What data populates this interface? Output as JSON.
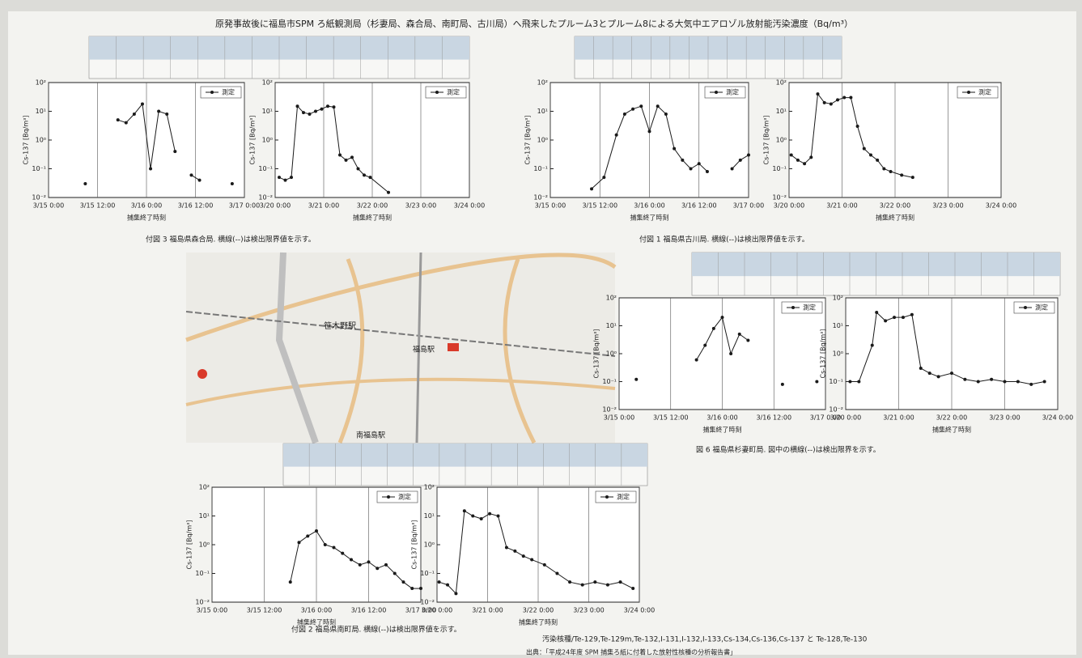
{
  "title": "原発事故後に福島市SPM ろ紙観測局（杉妻局、森合局、南町局、古川局）へ飛来したプルーム3とプルーム8による大気中エアロゾル放射能汚染濃度（Bq/m³）",
  "chart_data": [
    {
      "type": "line",
      "xlabel": "捕集終了時刻",
      "ylabel": "Cs-137 [Bq/m³]",
      "log_y": true,
      "grid": true,
      "markers": true,
      "xlim": [
        "3/15 0:00",
        "3/17 0:00"
      ],
      "xticks": [
        "3/15 0:00",
        "3/15 12:00",
        "3/16 0:00",
        "3/16 12:00",
        "3/17 0:00"
      ],
      "ylim": [
        0.01,
        100
      ],
      "yticks": [
        {
          "value": 0.01,
          "label": "10⁻²"
        },
        {
          "value": 0.1,
          "label": "10⁻¹"
        },
        {
          "value": 1,
          "label": "10⁰"
        },
        {
          "value": 10,
          "label": "10¹"
        },
        {
          "value": 100,
          "label": "10²"
        }
      ],
      "x": [
        "3/15 9:00",
        "3/15 15:00",
        "3/15 17:00",
        "3/15 19:00",
        "3/15 21:00",
        "3/15 23:00",
        "3/16 1:00",
        "3/16 3:00",
        "3/16 5:00",
        "3/16 7:00",
        "3/16 9:00",
        "3/16 11:00",
        "3/16 13:00",
        "3/16 15:00",
        "3/16 21:00"
      ],
      "series": [
        {
          "name": "測定",
          "color": "#1a1a1a",
          "values": [
            0.03,
            null,
            5,
            4,
            8,
            18,
            0.1,
            10,
            8,
            0.4,
            null,
            0.06,
            0.04,
            null,
            0.03
          ]
        }
      ]
    },
    {
      "type": "line",
      "xlabel": "捕集終了時刻",
      "ylabel": "Cs-137 [Bq/m³]",
      "log_y": true,
      "grid": true,
      "markers": true,
      "xlim": [
        "3/20 0:00",
        "3/24 0:00"
      ],
      "xticks": [
        "3/20 0:00",
        "3/21 0:00",
        "3/22 0:00",
        "3/23 0:00",
        "3/24 0:00"
      ],
      "ylim": [
        0.01,
        100
      ],
      "yticks": [
        {
          "value": 0.01,
          "label": "10⁻²"
        },
        {
          "value": 0.1,
          "label": "10⁻¹"
        },
        {
          "value": 1,
          "label": "10⁰"
        },
        {
          "value": 10,
          "label": "10¹"
        },
        {
          "value": 100,
          "label": "10²"
        }
      ],
      "x": [
        "3/20 2:00",
        "3/20 5:00",
        "3/20 8:00",
        "3/20 11:00",
        "3/20 14:00",
        "3/20 17:00",
        "3/20 20:00",
        "3/20 23:00",
        "3/21 2:00",
        "3/21 5:00",
        "3/21 8:00",
        "3/21 11:00",
        "3/21 14:00",
        "3/21 17:00",
        "3/21 20:00",
        "3/21 23:00",
        "3/22 8:00"
      ],
      "series": [
        {
          "name": "測定",
          "color": "#1a1a1a",
          "values": [
            0.05,
            0.04,
            0.05,
            15,
            9,
            8,
            10,
            12,
            15,
            14,
            0.3,
            0.2,
            0.25,
            0.1,
            0.06,
            0.05,
            0.015
          ]
        }
      ]
    },
    {
      "type": "line",
      "xlabel": "捕集終了時刻",
      "ylabel": "Cs-137 [Bq/m³]",
      "log_y": true,
      "grid": true,
      "markers": true,
      "xlim": [
        "3/15 0:00",
        "3/17 0:00"
      ],
      "xticks": [
        "3/15 0:00",
        "3/15 12:00",
        "3/16 0:00",
        "3/16 12:00",
        "3/17 0:00"
      ],
      "ylim": [
        0.01,
        100
      ],
      "yticks": [
        {
          "value": 0.01,
          "label": "10⁻²"
        },
        {
          "value": 0.1,
          "label": "10⁻¹"
        },
        {
          "value": 1,
          "label": "10⁰"
        },
        {
          "value": 10,
          "label": "10¹"
        },
        {
          "value": 100,
          "label": "10²"
        }
      ],
      "x": [
        "3/15 10:00",
        "3/15 13:00",
        "3/15 16:00",
        "3/15 18:00",
        "3/15 20:00",
        "3/15 22:00",
        "3/16 0:00",
        "3/16 2:00",
        "3/16 4:00",
        "3/16 6:00",
        "3/16 8:00",
        "3/16 10:00",
        "3/16 12:00",
        "3/16 14:00",
        "3/16 17:00",
        "3/16 20:00",
        "3/16 22:00",
        "3/17 0:00"
      ],
      "series": [
        {
          "name": "測定",
          "color": "#1a1a1a",
          "values": [
            0.02,
            0.05,
            1.5,
            8,
            12,
            15,
            2,
            15,
            8,
            0.5,
            0.2,
            0.1,
            0.15,
            0.08,
            null,
            0.1,
            0.2,
            0.3
          ]
        }
      ]
    },
    {
      "type": "line",
      "xlabel": "捕集終了時刻",
      "ylabel": "Cs-137 [Bq/m³]",
      "log_y": true,
      "grid": true,
      "markers": true,
      "xlim": [
        "3/20 0:00",
        "3/24 0:00"
      ],
      "xticks": [
        "3/20 0:00",
        "3/21 0:00",
        "3/22 0:00",
        "3/23 0:00",
        "3/24 0:00"
      ],
      "ylim": [
        0.01,
        100
      ],
      "yticks": [
        {
          "value": 0.01,
          "label": "10⁻²"
        },
        {
          "value": 0.1,
          "label": "10⁻¹"
        },
        {
          "value": 1,
          "label": "10⁰"
        },
        {
          "value": 10,
          "label": "10¹"
        },
        {
          "value": 100,
          "label": "10²"
        }
      ],
      "x": [
        "3/20 1:00",
        "3/20 4:00",
        "3/20 7:00",
        "3/20 10:00",
        "3/20 13:00",
        "3/20 16:00",
        "3/20 19:00",
        "3/20 22:00",
        "3/21 1:00",
        "3/21 4:00",
        "3/21 7:00",
        "3/21 10:00",
        "3/21 13:00",
        "3/21 16:00",
        "3/21 19:00",
        "3/21 22:00",
        "3/22 3:00",
        "3/22 8:00"
      ],
      "series": [
        {
          "name": "測定",
          "color": "#1a1a1a",
          "values": [
            0.3,
            0.2,
            0.15,
            0.25,
            40,
            20,
            18,
            25,
            30,
            30,
            3,
            0.5,
            0.3,
            0.2,
            0.1,
            0.08,
            0.06,
            0.05
          ]
        }
      ]
    },
    {
      "type": "line",
      "xlabel": "捕集終了時刻",
      "ylabel": "Cs-137 [Bq/m³]",
      "log_y": true,
      "grid": true,
      "markers": true,
      "xlim": [
        "3/15 0:00",
        "3/17 0:00"
      ],
      "xticks": [
        "3/15 0:00",
        "3/15 12:00",
        "3/16 0:00",
        "3/16 12:00",
        "3/17 0:00"
      ],
      "ylim": [
        0.01,
        100
      ],
      "yticks": [
        {
          "value": 0.01,
          "label": "10⁻²"
        },
        {
          "value": 0.1,
          "label": "10⁻¹"
        },
        {
          "value": 1,
          "label": "10⁰"
        },
        {
          "value": 10,
          "label": "10¹"
        },
        {
          "value": 100,
          "label": "10²"
        }
      ],
      "x": [
        "3/15 4:00",
        "3/15 12:00",
        "3/15 18:00",
        "3/15 20:00",
        "3/15 22:00",
        "3/16 0:00",
        "3/16 2:00",
        "3/16 4:00",
        "3/16 6:00",
        "3/16 10:00",
        "3/16 14:00",
        "3/16 18:00",
        "3/16 22:00"
      ],
      "series": [
        {
          "name": "測定",
          "color": "#1a1a1a",
          "values": [
            0.12,
            null,
            0.6,
            2,
            8,
            20,
            1,
            5,
            3,
            null,
            0.08,
            null,
            0.1
          ]
        }
      ]
    },
    {
      "type": "line",
      "xlabel": "捕集終了時刻",
      "ylabel": "Cs-137 [Bq/m³]",
      "log_y": true,
      "grid": true,
      "markers": true,
      "xlim": [
        "3/20 0:00",
        "3/24 0:00"
      ],
      "xticks": [
        "3/20 0:00",
        "3/21 0:00",
        "3/22 0:00",
        "3/23 0:00",
        "3/24 0:00"
      ],
      "ylim": [
        0.01,
        100
      ],
      "yticks": [
        {
          "value": 0.01,
          "label": "10⁻²"
        },
        {
          "value": 0.1,
          "label": "10⁻¹"
        },
        {
          "value": 1,
          "label": "10⁰"
        },
        {
          "value": 10,
          "label": "10¹"
        },
        {
          "value": 100,
          "label": "10²"
        }
      ],
      "x": [
        "3/20 2:00",
        "3/20 6:00",
        "3/20 12:00",
        "3/20 14:00",
        "3/20 18:00",
        "3/20 22:00",
        "3/21 2:00",
        "3/21 6:00",
        "3/21 10:00",
        "3/21 14:00",
        "3/21 18:00",
        "3/22 0:00",
        "3/22 6:00",
        "3/22 12:00",
        "3/22 18:00",
        "3/23 0:00",
        "3/23 6:00",
        "3/23 12:00",
        "3/23 18:00"
      ],
      "series": [
        {
          "name": "測定",
          "color": "#1a1a1a",
          "values": [
            0.1,
            0.1,
            2,
            30,
            15,
            20,
            20,
            25,
            0.3,
            0.2,
            0.15,
            0.2,
            0.12,
            0.1,
            0.12,
            0.1,
            0.1,
            0.08,
            0.1
          ]
        }
      ]
    },
    {
      "type": "line",
      "xlabel": "捕集終了時刻",
      "ylabel": "Cs-137 [Bq/m³]",
      "log_y": true,
      "grid": true,
      "markers": true,
      "xlim": [
        "3/15 0:00",
        "3/17 0:00"
      ],
      "xticks": [
        "3/15 0:00",
        "3/15 12:00",
        "3/16 0:00",
        "3/16 12:00",
        "3/17 0:00"
      ],
      "ylim": [
        0.01,
        100
      ],
      "yticks": [
        {
          "value": 0.01,
          "label": "10⁻²"
        },
        {
          "value": 0.1,
          "label": "10⁻¹"
        },
        {
          "value": 1,
          "label": "10⁰"
        },
        {
          "value": 10,
          "label": "10¹"
        },
        {
          "value": 100,
          "label": "10²"
        }
      ],
      "x": [
        "3/15 18:00",
        "3/15 20:00",
        "3/15 22:00",
        "3/16 0:00",
        "3/16 2:00",
        "3/16 4:00",
        "3/16 6:00",
        "3/16 8:00",
        "3/16 10:00",
        "3/16 12:00",
        "3/16 14:00",
        "3/16 16:00",
        "3/16 18:00",
        "3/16 20:00",
        "3/16 22:00",
        "3/17 0:00"
      ],
      "series": [
        {
          "name": "測定",
          "color": "#1a1a1a",
          "values": [
            0.05,
            1.2,
            2,
            3,
            1,
            0.8,
            0.5,
            0.3,
            0.2,
            0.25,
            0.15,
            0.2,
            0.1,
            0.05,
            0.03,
            0.03
          ]
        }
      ]
    },
    {
      "type": "line",
      "xlabel": "捕集終了時刻",
      "ylabel": "Cs-137 [Bq/m³]",
      "log_y": true,
      "grid": true,
      "markers": true,
      "xlim": [
        "3/20 0:00",
        "3/24 0:00"
      ],
      "xticks": [
        "3/20 0:00",
        "3/21 0:00",
        "3/22 0:00",
        "3/23 0:00",
        "3/24 0:00"
      ],
      "ylim": [
        0.01,
        100
      ],
      "yticks": [
        {
          "value": 0.01,
          "label": "10⁻²"
        },
        {
          "value": 0.1,
          "label": "10⁻¹"
        },
        {
          "value": 1,
          "label": "10⁰"
        },
        {
          "value": 10,
          "label": "10¹"
        },
        {
          "value": 100,
          "label": "10²"
        }
      ],
      "x": [
        "3/20 1:00",
        "3/20 5:00",
        "3/20 9:00",
        "3/20 13:00",
        "3/20 17:00",
        "3/20 21:00",
        "3/21 1:00",
        "3/21 5:00",
        "3/21 9:00",
        "3/21 13:00",
        "3/21 17:00",
        "3/21 21:00",
        "3/22 3:00",
        "3/22 9:00",
        "3/22 15:00",
        "3/22 21:00",
        "3/23 3:00",
        "3/23 9:00",
        "3/23 15:00",
        "3/23 21:00"
      ],
      "series": [
        {
          "name": "測定",
          "color": "#1a1a1a",
          "values": [
            0.05,
            0.04,
            0.02,
            15,
            10,
            8,
            12,
            10,
            0.8,
            0.6,
            0.4,
            0.3,
            0.2,
            0.1,
            0.05,
            0.04,
            0.05,
            0.04,
            0.05,
            0.03
          ]
        }
      ]
    }
  ],
  "captions": [
    "付図 3 福島県森合局. 横線(--)は検出限界値を示す。",
    "付図 1 福島県古川局. 横線(--)は検出限界値を示す。",
    "図 6 福島県杉妻町局. 図中の横線(--)は検出限界を示す。",
    "付図 2 福島県南町局. 横線(--)は検出限界値を示す。"
  ],
  "map": {
    "labels": [
      "笹木野駅",
      "福島駅",
      "南福島駅"
    ]
  },
  "footer": {
    "nuclides": "汚染核種/Te-129,Te-129m,Te-132,I-131,I-132,I-133,Cs-134,Cs-136,Cs-137 と Te-128,Te-130",
    "source": "出典：「平成24年度 SPM 捕集ろ紙に付着した放射性核種の分析報告書」"
  }
}
